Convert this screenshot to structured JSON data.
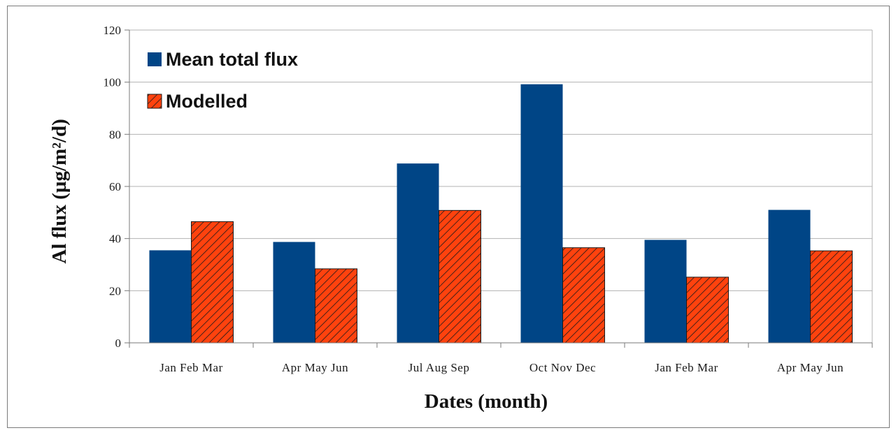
{
  "colors": {
    "mean_total_flux": "#004586",
    "modelled": "#ff420e",
    "gridline": "#b3b3b3",
    "axis": "#7a7a7a"
  },
  "chart_data": {
    "type": "bar",
    "title": "",
    "xlabel": "Dates (month)",
    "ylabel": "Al flux (µg/m²/d)",
    "ylim": [
      0,
      120
    ],
    "yticks": [
      0,
      20,
      40,
      60,
      80,
      100,
      120
    ],
    "grid": "horizontal",
    "legend_position": "top-left",
    "categories": [
      "Jan Feb Mar",
      "Apr May Jun",
      "Jul Aug Sep",
      "Oct Nov Dec",
      "Jan Feb Mar",
      "Apr May Jun"
    ],
    "series": [
      {
        "name": "Mean total flux",
        "pattern": "solid",
        "values": [
          35.5,
          38.7,
          68.8,
          99.2,
          39.5,
          51.0
        ]
      },
      {
        "name": "Modelled",
        "pattern": "diagonal-hatch",
        "values": [
          46.5,
          28.4,
          50.8,
          36.5,
          25.2,
          35.3
        ]
      }
    ]
  }
}
